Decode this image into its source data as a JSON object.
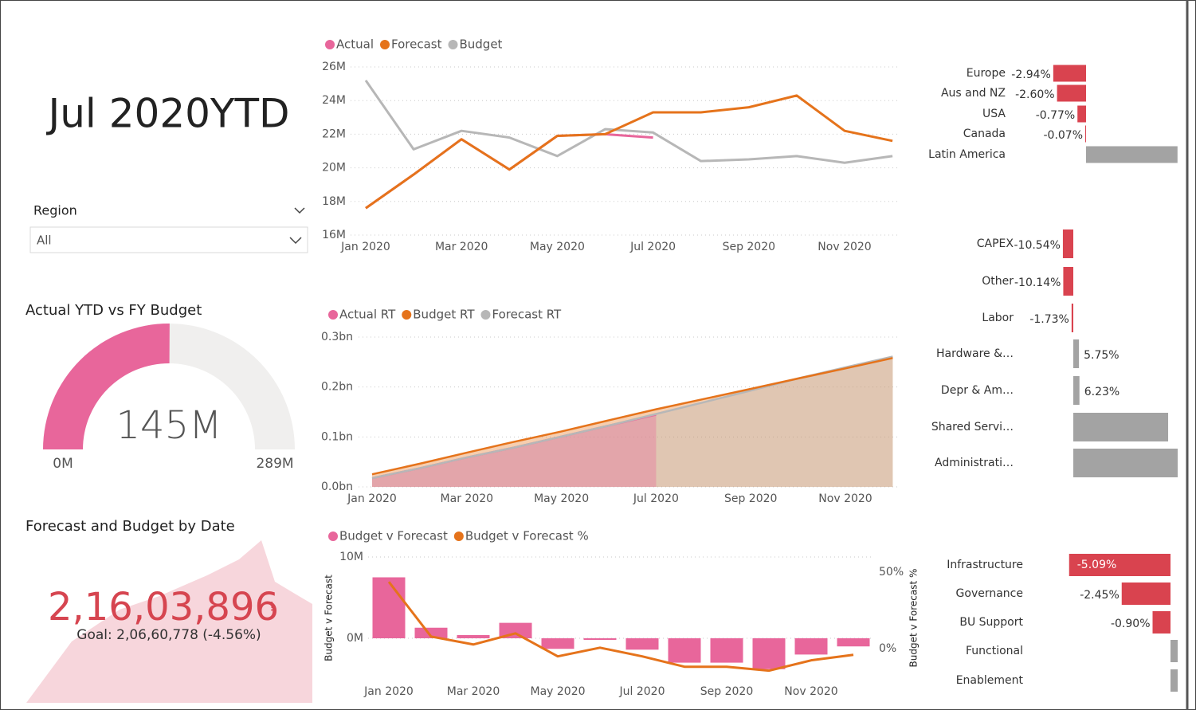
{
  "title": "Jul 2020YTD",
  "slicer": {
    "label": "Region",
    "value": "All"
  },
  "kpi": {
    "title": "Forecast and Budget by Date",
    "value": "2,16,03,896",
    "alert": "!",
    "goal": "Goal: 2,06,60,778 (-4.56%)"
  },
  "chart_data": [
    {
      "type": "gauge",
      "title": "Actual YTD vs FY Budget",
      "values": [
        145
      ],
      "value_labels": [
        "145M"
      ],
      "ylim": [
        0,
        289
      ],
      "yticks": [
        {
          "value": 0,
          "label": "0M"
        },
        {
          "value": 289,
          "label": "289M"
        }
      ],
      "color": "#e8669b",
      "track_color": "#f0efee"
    },
    {
      "type": "line",
      "categories": [
        "Jan 2020",
        null,
        "Mar 2020",
        null,
        "May 2020",
        null,
        "Jul 2020",
        null,
        "Sep 2020",
        null,
        "Nov 2020",
        null
      ],
      "series": [
        {
          "name": "Actual",
          "color": "#e8669b",
          "values": [
            17.6,
            19.6,
            21.7,
            19.9,
            21.9,
            22.0,
            21.8,
            null,
            null,
            null,
            null,
            null
          ]
        },
        {
          "name": "Forecast",
          "color": "#e5731b",
          "values": [
            17.6,
            19.6,
            21.7,
            19.9,
            21.9,
            22.0,
            23.3,
            23.3,
            23.6,
            24.3,
            22.2,
            21.6
          ]
        },
        {
          "name": "Budget",
          "color": "#b7b7b7",
          "values": [
            25.2,
            21.1,
            22.2,
            21.8,
            20.7,
            22.3,
            22.1,
            20.4,
            20.5,
            20.7,
            20.3,
            20.7
          ]
        }
      ],
      "ylim": [
        16,
        26
      ],
      "yticks": [
        {
          "value": 16,
          "label": "16M"
        },
        {
          "value": 18,
          "label": "18M"
        },
        {
          "value": 20,
          "label": "20M"
        },
        {
          "value": 22,
          "label": "22M"
        },
        {
          "value": 24,
          "label": "24M"
        },
        {
          "value": 26,
          "label": "26M"
        }
      ],
      "grid": true
    },
    {
      "type": "area",
      "categories": [
        "Jan 2020",
        null,
        "Mar 2020",
        null,
        "May 2020",
        null,
        "Jul 2020",
        null,
        "Sep 2020",
        null,
        "Nov 2020",
        null
      ],
      "series": [
        {
          "name": "Actual RT",
          "color": "#e8669b",
          "values": [
            0.0176,
            0.0372,
            0.0589,
            0.0788,
            0.1007,
            0.1227,
            0.1445,
            null,
            null,
            null,
            null,
            null
          ]
        },
        {
          "name": "Budget RT",
          "color": "#e5731b",
          "values": [
            0.0252,
            0.0463,
            0.0685,
            0.0903,
            0.111,
            0.1333,
            0.1554,
            0.1758,
            0.1963,
            0.217,
            0.2373,
            0.258
          ]
        },
        {
          "name": "Forecast RT",
          "color": "#b7b7b7",
          "values": [
            0.0176,
            0.0372,
            0.0589,
            0.0788,
            0.1007,
            0.1227,
            0.146,
            0.1693,
            0.1929,
            0.2172,
            0.2394,
            0.261
          ]
        }
      ],
      "ylim": [
        0,
        0.3
      ],
      "yticks": [
        {
          "value": 0,
          "label": "0.0bn"
        },
        {
          "value": 0.1,
          "label": "0.1bn"
        },
        {
          "value": 0.2,
          "label": "0.2bn"
        },
        {
          "value": 0.3,
          "label": "0.3bn"
        }
      ],
      "grid": true
    },
    {
      "type": "combo",
      "categories": [
        "Jan 2020",
        null,
        "Mar 2020",
        null,
        "May 2020",
        null,
        "Jul 2020",
        null,
        "Sep 2020",
        null,
        "Nov 2020",
        null
      ],
      "series": [
        {
          "name": "Budget v Forecast",
          "type": "bar",
          "color": "#e8669b",
          "values": [
            7.5,
            1.3,
            0.4,
            1.9,
            -1.3,
            -0.2,
            -1.4,
            -3.0,
            -3.0,
            -3.8,
            -2.0,
            -1.0
          ]
        },
        {
          "name": "Budget v Forecast %",
          "type": "line",
          "axis": "y2",
          "color": "#e5731b",
          "values": [
            43.7,
            7.8,
            2.6,
            9.9,
            -5.2,
            0.5,
            -5.2,
            -12,
            -12,
            -14.6,
            -7.8,
            -4.2
          ]
        }
      ],
      "ylabel": "Budget v Forecast",
      "y2label": "Budget v Forecast %",
      "ylim": [
        -5,
        10
      ],
      "yticks": [
        {
          "value": 0,
          "label": "0M"
        },
        {
          "value": 10,
          "label": "10M"
        }
      ],
      "y2lim": [
        -20,
        60
      ],
      "y2ticks": [
        {
          "value": 0,
          "label": "0%"
        },
        {
          "value": 50,
          "label": "50%"
        }
      ],
      "grid": true
    },
    {
      "type": "barh",
      "categories": [
        "Europe",
        "Aus and NZ",
        "USA",
        "Canada",
        "Latin America"
      ],
      "values": [
        -2.94,
        -2.6,
        -0.77,
        -0.07,
        8.2
      ],
      "value_labels": [
        "-2.94%",
        "-2.60%",
        "-0.77%",
        "-0.07%",
        null
      ],
      "negative_color": "#d9434f",
      "positive_color": "#a3a3a3"
    },
    {
      "type": "barh",
      "categories": [
        "CAPEX",
        "Other",
        "Labor",
        "Hardware &…",
        "Depr & Am…",
        "Shared Servi…",
        "Administrati…"
      ],
      "values": [
        -10.54,
        -10.14,
        -1.73,
        5.75,
        6.23,
        96,
        147
      ],
      "value_labels": [
        "-10.54%",
        "-10.14%",
        "-1.73%",
        "5.75%",
        "6.23%",
        null,
        null
      ],
      "negative_color": "#d9434f",
      "positive_color": "#a3a3a3"
    },
    {
      "type": "barh",
      "categories": [
        "Infrastructure",
        "Governance",
        "BU Support",
        "Functional",
        "Enablement"
      ],
      "values": [
        -5.09,
        -2.45,
        -0.9,
        0.4,
        0.4
      ],
      "value_labels": [
        "-5.09%",
        "-2.45%",
        "-0.90%",
        null,
        null
      ],
      "negative_color": "#d9434f",
      "positive_color": "#a3a3a3"
    }
  ]
}
